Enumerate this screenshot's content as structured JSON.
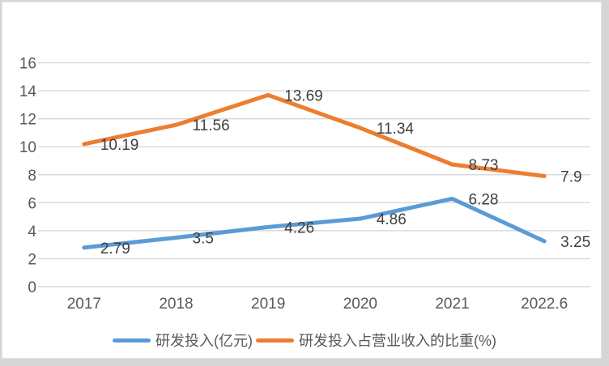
{
  "chart_data": {
    "type": "line",
    "title": "",
    "xlabel": "",
    "ylabel": "",
    "categories": [
      "2017",
      "2018",
      "2019",
      "2020",
      "2021",
      "2022.6"
    ],
    "series": [
      {
        "name": "研发投入(亿元)",
        "color": "#5B9BD5",
        "values": [
          2.79,
          3.5,
          4.26,
          4.86,
          6.28,
          3.25
        ],
        "labels": [
          "2.79",
          "3.5",
          "4.26",
          "4.86",
          "6.28",
          "3.25"
        ]
      },
      {
        "name": "研发投入占营业收入的比重(%)",
        "color": "#ED7D31",
        "values": [
          10.19,
          11.56,
          13.69,
          11.34,
          8.73,
          7.9
        ],
        "labels": [
          "10.19",
          "11.56",
          "13.69",
          "11.34",
          "8.73",
          "7.9"
        ]
      }
    ],
    "ylim": [
      0,
      16
    ],
    "yticks": [
      "16",
      "14",
      "12",
      "10",
      "8",
      "6",
      "4",
      "2",
      "0"
    ],
    "ytick_values": [
      16,
      14,
      12,
      10,
      8,
      6,
      4,
      2,
      0
    ],
    "grid": true,
    "legend_position": "bottom",
    "data_labels": "right-of-point"
  },
  "styles": {
    "grid_color": "#D9D9D9",
    "axis_label_color": "#595959",
    "data_label_color": "#404040",
    "plot_background": "#FFFFFF",
    "frame_background": "#D6D6D6",
    "card_border_color": "#E3E3E3"
  }
}
